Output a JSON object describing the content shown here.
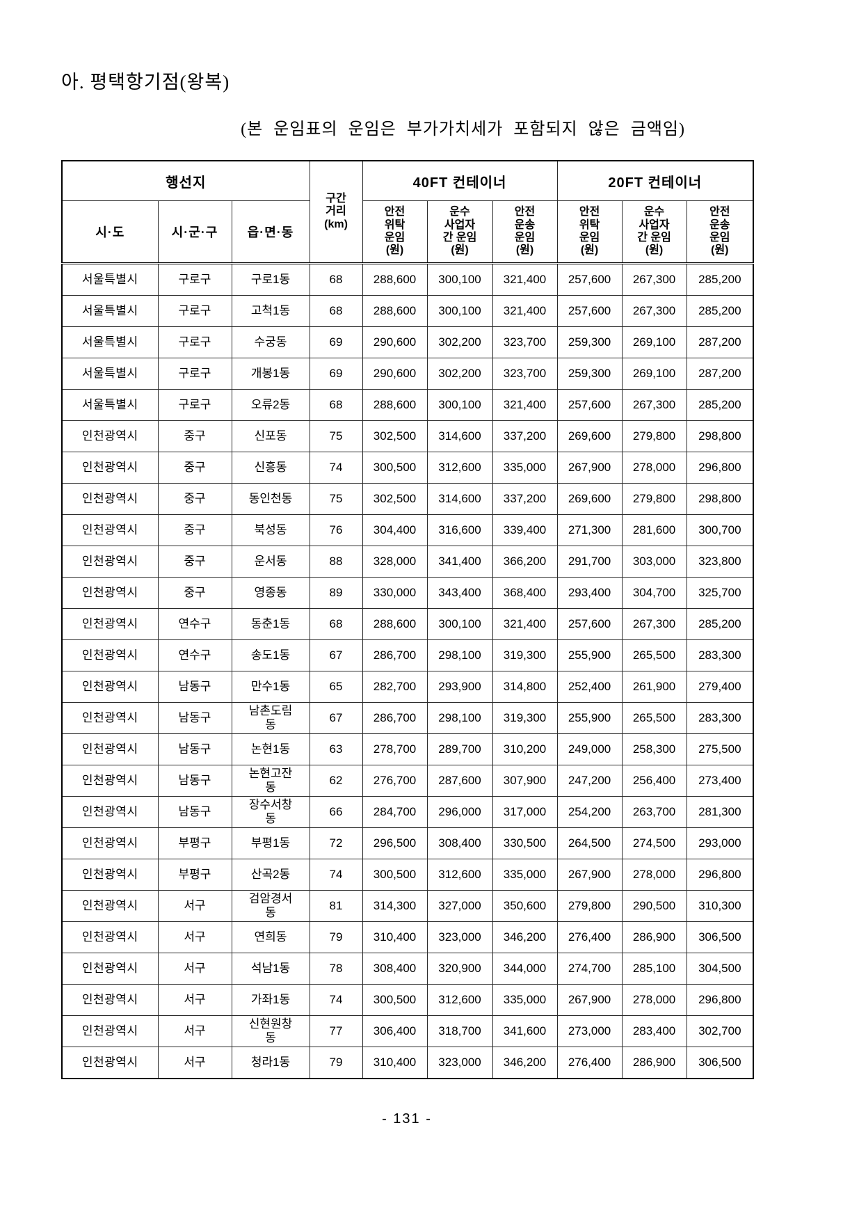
{
  "page": {
    "title": "아. 평택항기점(왕복)",
    "subtitle": "(본 운임표의 운임은 부가가치세가 포함되지 않은 금액임)",
    "footer": "- 131 -"
  },
  "table": {
    "header": {
      "destination": "행선지",
      "distance": "구간\n거리\n(km)",
      "ft40": "40FT 컨테이너",
      "ft20": "20FT 컨테이너",
      "sido": "시·도",
      "sigungu": "시·군·구",
      "dong": "읍·면·동",
      "sub_headers": [
        "안전\n위탁\n운임\n(원)",
        "운수\n사업자\n간 운임\n(원)",
        "안전\n운송\n운임\n(원)",
        "안전\n위탁\n운임\n(원)",
        "운수\n사업자\n간 운임\n(원)",
        "안전\n운송\n운임\n(원)"
      ]
    },
    "rows": [
      [
        "서울특별시",
        "구로구",
        "구로1동",
        "68",
        "288,600",
        "300,100",
        "321,400",
        "257,600",
        "267,300",
        "285,200"
      ],
      [
        "서울특별시",
        "구로구",
        "고척1동",
        "68",
        "288,600",
        "300,100",
        "321,400",
        "257,600",
        "267,300",
        "285,200"
      ],
      [
        "서울특별시",
        "구로구",
        "수궁동",
        "69",
        "290,600",
        "302,200",
        "323,700",
        "259,300",
        "269,100",
        "287,200"
      ],
      [
        "서울특별시",
        "구로구",
        "개봉1동",
        "69",
        "290,600",
        "302,200",
        "323,700",
        "259,300",
        "269,100",
        "287,200"
      ],
      [
        "서울특별시",
        "구로구",
        "오류2동",
        "68",
        "288,600",
        "300,100",
        "321,400",
        "257,600",
        "267,300",
        "285,200"
      ],
      [
        "인천광역시",
        "중구",
        "신포동",
        "75",
        "302,500",
        "314,600",
        "337,200",
        "269,600",
        "279,800",
        "298,800"
      ],
      [
        "인천광역시",
        "중구",
        "신흥동",
        "74",
        "300,500",
        "312,600",
        "335,000",
        "267,900",
        "278,000",
        "296,800"
      ],
      [
        "인천광역시",
        "중구",
        "동인천동",
        "75",
        "302,500",
        "314,600",
        "337,200",
        "269,600",
        "279,800",
        "298,800"
      ],
      [
        "인천광역시",
        "중구",
        "북성동",
        "76",
        "304,400",
        "316,600",
        "339,400",
        "271,300",
        "281,600",
        "300,700"
      ],
      [
        "인천광역시",
        "중구",
        "운서동",
        "88",
        "328,000",
        "341,400",
        "366,200",
        "291,700",
        "303,000",
        "323,800"
      ],
      [
        "인천광역시",
        "중구",
        "영종동",
        "89",
        "330,000",
        "343,400",
        "368,400",
        "293,400",
        "304,700",
        "325,700"
      ],
      [
        "인천광역시",
        "연수구",
        "동춘1동",
        "68",
        "288,600",
        "300,100",
        "321,400",
        "257,600",
        "267,300",
        "285,200"
      ],
      [
        "인천광역시",
        "연수구",
        "송도1동",
        "67",
        "286,700",
        "298,100",
        "319,300",
        "255,900",
        "265,500",
        "283,300"
      ],
      [
        "인천광역시",
        "남동구",
        "만수1동",
        "65",
        "282,700",
        "293,900",
        "314,800",
        "252,400",
        "261,900",
        "279,400"
      ],
      [
        "인천광역시",
        "남동구",
        "남촌도림\n동",
        "67",
        "286,700",
        "298,100",
        "319,300",
        "255,900",
        "265,500",
        "283,300"
      ],
      [
        "인천광역시",
        "남동구",
        "논현1동",
        "63",
        "278,700",
        "289,700",
        "310,200",
        "249,000",
        "258,300",
        "275,500"
      ],
      [
        "인천광역시",
        "남동구",
        "논현고잔\n동",
        "62",
        "276,700",
        "287,600",
        "307,900",
        "247,200",
        "256,400",
        "273,400"
      ],
      [
        "인천광역시",
        "남동구",
        "장수서창\n동",
        "66",
        "284,700",
        "296,000",
        "317,000",
        "254,200",
        "263,700",
        "281,300"
      ],
      [
        "인천광역시",
        "부평구",
        "부평1동",
        "72",
        "296,500",
        "308,400",
        "330,500",
        "264,500",
        "274,500",
        "293,000"
      ],
      [
        "인천광역시",
        "부평구",
        "산곡2동",
        "74",
        "300,500",
        "312,600",
        "335,000",
        "267,900",
        "278,000",
        "296,800"
      ],
      [
        "인천광역시",
        "서구",
        "검암경서\n동",
        "81",
        "314,300",
        "327,000",
        "350,600",
        "279,800",
        "290,500",
        "310,300"
      ],
      [
        "인천광역시",
        "서구",
        "연희동",
        "79",
        "310,400",
        "323,000",
        "346,200",
        "276,400",
        "286,900",
        "306,500"
      ],
      [
        "인천광역시",
        "서구",
        "석남1동",
        "78",
        "308,400",
        "320,900",
        "344,000",
        "274,700",
        "285,100",
        "304,500"
      ],
      [
        "인천광역시",
        "서구",
        "가좌1동",
        "74",
        "300,500",
        "312,600",
        "335,000",
        "267,900",
        "278,000",
        "296,800"
      ],
      [
        "인천광역시",
        "서구",
        "신현원창\n동",
        "77",
        "306,400",
        "318,700",
        "341,600",
        "273,000",
        "283,400",
        "302,700"
      ],
      [
        "인천광역시",
        "서구",
        "청라1동",
        "79",
        "310,400",
        "323,000",
        "346,200",
        "276,400",
        "286,900",
        "306,500"
      ]
    ]
  }
}
